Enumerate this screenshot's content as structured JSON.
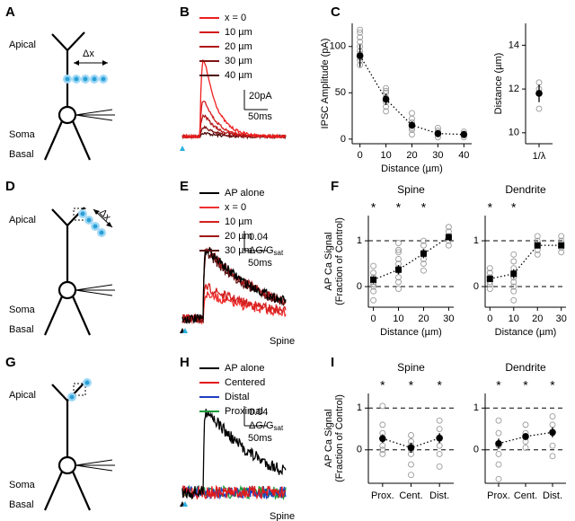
{
  "panel_labels": [
    "A",
    "B",
    "C",
    "D",
    "E",
    "F",
    "G",
    "H",
    "I"
  ],
  "diagrams": [
    {
      "apical": "Apical",
      "soma": "Soma",
      "basal": "Basal",
      "delta": "Δx"
    },
    {
      "apical": "Apical",
      "soma": "Soma",
      "basal": "Basal",
      "delta": "Δx"
    },
    {
      "apical": "Apical",
      "soma": "Soma",
      "basal": "Basal"
    }
  ],
  "traces": [
    {
      "legend": [
        {
          "name": "x = 0",
          "color": "#f01e1e"
        },
        {
          "name": "10 µm",
          "color": "#d41c1c"
        },
        {
          "name": "20 µm",
          "color": "#b01818"
        },
        {
          "name": "30 µm",
          "color": "#801414"
        },
        {
          "name": "40 µm",
          "color": "#4d0c0c"
        }
      ],
      "scale_y": "20pA",
      "scale_x": "50ms"
    },
    {
      "legend": [
        {
          "name": "AP alone",
          "color": "#000000"
        },
        {
          "name": "x = 0",
          "color": "#f03030"
        },
        {
          "name": "10 µm",
          "color": "#d42020"
        },
        {
          "name": "20 µm",
          "color": "#a01818"
        },
        {
          "name": "30 µm",
          "color": "#5a1010"
        }
      ],
      "scale_y": "0.04",
      "scale_y_unit": "ΔG/G",
      "scale_y_unit_sub": "sat",
      "scale_x": "50ms",
      "label": "Spine"
    },
    {
      "legend": [
        {
          "name": "AP alone",
          "color": "#000000"
        },
        {
          "name": "Centered",
          "color": "#e31a1c"
        },
        {
          "name": "Distal",
          "color": "#1f3fbf"
        },
        {
          "name": "Proximal",
          "color": "#1a9a3a"
        }
      ],
      "scale_y": "0.04",
      "scale_y_unit": "ΔG/G",
      "scale_y_unit_sub": "sat",
      "scale_x": "50ms",
      "label": "Spine"
    }
  ],
  "chart_data": [
    {
      "type": "scatter",
      "ylabel": "IPSC Amplitude (pA)",
      "xlabel": "Distance (µm)",
      "marker": "circle",
      "x": [
        0,
        10,
        20,
        30,
        40
      ],
      "values": [
        90,
        43,
        15,
        6,
        5
      ],
      "errors": [
        12,
        6,
        4,
        2,
        1
      ],
      "points": [
        [
          80,
          85,
          88,
          92,
          95,
          100,
          105,
          110,
          115,
          118
        ],
        [
          30,
          35,
          40,
          45,
          50,
          52,
          55
        ],
        [
          5,
          10,
          12,
          18,
          22,
          28
        ],
        [
          2,
          5,
          7,
          9,
          12
        ],
        [
          2,
          4,
          6,
          8
        ]
      ],
      "xlim": [
        -3,
        43
      ],
      "xticks": [
        0,
        10,
        20,
        30,
        40
      ],
      "ylim": [
        -5,
        125
      ],
      "yticks": [
        0,
        50,
        100
      ]
    },
    {
      "type": "scatter",
      "ylabel": "Distance (µm)",
      "marker": "circle",
      "categories": [
        "1/λ"
      ],
      "values": [
        11.8
      ],
      "errors": [
        0.4
      ],
      "points": [
        [
          11.1,
          12.0,
          12.3
        ]
      ],
      "ylim": [
        9.5,
        15
      ],
      "yticks": [
        10,
        12,
        14
      ]
    },
    {
      "type": "scatter",
      "title": "Spine",
      "ylabel": [
        "AP Ca Signal",
        "(Fraction of Control)"
      ],
      "xlabel": "Distance (µm)",
      "marker": "square",
      "x": [
        0,
        10,
        20,
        30
      ],
      "values": [
        0.15,
        0.37,
        0.72,
        1.08
      ],
      "errors": [
        0.08,
        0.1,
        0.1,
        0.07
      ],
      "points": [
        [
          -0.3,
          -0.1,
          0,
          0.05,
          0.1,
          0.2,
          0.3,
          0.45
        ],
        [
          -0.05,
          0.1,
          0.2,
          0.35,
          0.5,
          0.6,
          0.75,
          0.8,
          0.95
        ],
        [
          0.35,
          0.5,
          0.6,
          0.75,
          0.9,
          1.0
        ],
        [
          0.9,
          1.0,
          1.1,
          1.2,
          1.3
        ]
      ],
      "significance": [
        "*",
        "*",
        "*",
        null
      ],
      "ref_lines": [
        0,
        1
      ],
      "xlim": [
        -2,
        32
      ],
      "xticks": [
        0,
        10,
        20,
        30
      ],
      "ylim": [
        -0.45,
        1.55
      ],
      "yticks": [
        0,
        1
      ]
    },
    {
      "type": "scatter",
      "title": "Dendrite",
      "xlabel": "Distance (µm)",
      "marker": "square",
      "x": [
        0,
        10,
        20,
        30
      ],
      "values": [
        0.17,
        0.28,
        0.9,
        0.9
      ],
      "errors": [
        0.07,
        0.1,
        0.07,
        0.06
      ],
      "points": [
        [
          -0.05,
          0.05,
          0.1,
          0.2,
          0.3,
          0.4
        ],
        [
          -0.3,
          -0.1,
          0,
          0.1,
          0.2,
          0.4,
          0.55,
          0.7
        ],
        [
          0.7,
          0.8,
          0.9,
          1.0,
          1.1
        ],
        [
          0.75,
          0.85,
          0.9,
          1.0,
          1.1
        ]
      ],
      "significance": [
        "*",
        "*",
        null,
        null
      ],
      "ref_lines": [
        0,
        1
      ],
      "xlim": [
        -2,
        32
      ],
      "xticks": [
        0,
        10,
        20,
        30
      ],
      "ylim": [
        -0.45,
        1.55
      ],
      "yticks": [
        0,
        1
      ]
    },
    {
      "type": "scatter",
      "title": "Spine",
      "ylabel": [
        "AP Ca Signal",
        "(Fraction of Control)"
      ],
      "marker": "circle",
      "categories": [
        "Prox.",
        "Cent.",
        "Dist."
      ],
      "values": [
        0.27,
        0.05,
        0.28
      ],
      "errors": [
        0.1,
        0.12,
        0.12
      ],
      "points": [
        [
          -0.1,
          0,
          0.1,
          0.25,
          0.4,
          0.6,
          1.05
        ],
        [
          -0.6,
          -0.35,
          -0.1,
          0,
          0.1,
          0.2,
          0.35
        ],
        [
          -0.4,
          -0.1,
          0.1,
          0.3,
          0.5,
          0.7
        ]
      ],
      "significance": [
        "*",
        "*",
        "*"
      ],
      "ref_lines": [
        0,
        1
      ],
      "ylim": [
        -0.8,
        1.35
      ],
      "yticks": [
        0,
        1
      ]
    },
    {
      "type": "scatter",
      "title": "Dendrite",
      "marker": "circle",
      "categories": [
        "Prox.",
        "Cent.",
        "Dist."
      ],
      "values": [
        0.15,
        0.32,
        0.42
      ],
      "errors": [
        0.12,
        0.08,
        0.12
      ],
      "points": [
        [
          -0.7,
          -0.35,
          -0.1,
          0.1,
          0.4,
          0.7
        ],
        [
          0.05,
          0.2,
          0.3,
          0.4,
          0.6
        ],
        [
          -0.15,
          0.1,
          0.4,
          0.6,
          0.8
        ]
      ],
      "significance": [
        "*",
        "*",
        "*"
      ],
      "ref_lines": [
        0,
        1
      ],
      "ylim": [
        -0.8,
        1.35
      ],
      "yticks": [
        0,
        1
      ]
    }
  ]
}
